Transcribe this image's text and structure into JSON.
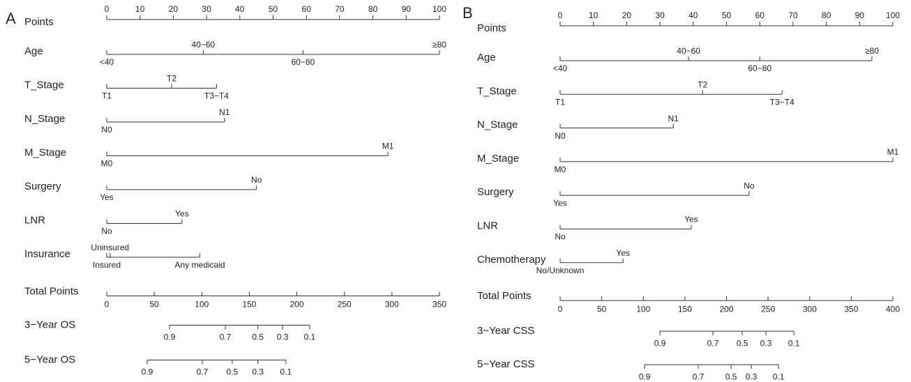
{
  "chart_data": [
    {
      "type": "nomogram",
      "panel": "A",
      "points_label": "Points",
      "xlim": [
        0,
        100
      ],
      "xticks": [
        0,
        10,
        20,
        30,
        40,
        50,
        60,
        70,
        80,
        90,
        100
      ],
      "variables": [
        {
          "name": "Age",
          "levels": [
            "<40",
            "40−60",
            "60−80",
            "≥80"
          ],
          "values": [
            0,
            29,
            59,
            100
          ]
        },
        {
          "name": "T_Stage",
          "levels": [
            "T1",
            "T2",
            "T3−T4"
          ],
          "values": [
            0,
            19.5,
            33
          ]
        },
        {
          "name": "N_Stage",
          "levels": [
            "N0",
            "N1"
          ],
          "values": [
            0,
            35.4
          ]
        },
        {
          "name": "M_Stage",
          "levels": [
            "M0",
            "M1"
          ],
          "values": [
            0,
            84.5
          ]
        },
        {
          "name": "Surgery",
          "levels": [
            "Yes",
            "No"
          ],
          "values": [
            0,
            45
          ]
        },
        {
          "name": "LNR",
          "levels": [
            "No",
            "Yes"
          ],
          "values": [
            0,
            22.6
          ]
        },
        {
          "name": "Insurance",
          "levels": [
            "Insured",
            "Uninsured",
            "Any medicaid"
          ],
          "values": [
            0,
            1,
            28
          ]
        }
      ],
      "total": {
        "name": "Total Points",
        "xlim": [
          0,
          350
        ],
        "xticks": [
          0,
          50,
          100,
          150,
          200,
          250,
          300,
          350
        ]
      },
      "outcomes": [
        {
          "name": "3−Year OS",
          "probabilities": [
            0.9,
            0.7,
            0.5,
            0.3,
            0.1
          ],
          "values": [
            66,
            124.7,
            159,
            185,
            213.5
          ]
        },
        {
          "name": "5−Year OS",
          "probabilities": [
            0.9,
            0.7,
            0.5,
            0.3,
            0.1
          ],
          "values": [
            42.5,
            100.5,
            132,
            159,
            188.5
          ]
        }
      ]
    },
    {
      "type": "nomogram",
      "panel": "B",
      "points_label": "Points",
      "xlim": [
        0,
        100
      ],
      "xticks": [
        0,
        10,
        20,
        30,
        40,
        50,
        60,
        70,
        80,
        90,
        100
      ],
      "variables": [
        {
          "name": "Age",
          "levels": [
            "<40",
            "40−60",
            "60−80",
            "≥80"
          ],
          "values": [
            0,
            38.6,
            60,
            93.7
          ]
        },
        {
          "name": "T_Stage",
          "levels": [
            "T1",
            "T2",
            "T3−T4"
          ],
          "values": [
            0,
            42.8,
            66.7
          ]
        },
        {
          "name": "N_Stage",
          "levels": [
            "N0",
            "N1"
          ],
          "values": [
            0,
            34
          ]
        },
        {
          "name": "M_Stage",
          "levels": [
            "M0",
            "M1"
          ],
          "values": [
            0,
            100
          ]
        },
        {
          "name": "Surgery",
          "levels": [
            "Yes",
            "No"
          ],
          "values": [
            0,
            56.8
          ]
        },
        {
          "name": "LNR",
          "levels": [
            "No",
            "Yes"
          ],
          "values": [
            0,
            39.4
          ]
        },
        {
          "name": "Chemotherapy",
          "levels": [
            "No/Unknown",
            "Yes"
          ],
          "values": [
            0,
            18.9
          ]
        }
      ],
      "total": {
        "name": "Total Points",
        "xlim": [
          0,
          400
        ],
        "xticks": [
          0,
          50,
          100,
          150,
          200,
          250,
          300,
          350,
          400
        ]
      },
      "outcomes": [
        {
          "name": "3−Year CSS",
          "probabilities": [
            0.9,
            0.7,
            0.5,
            0.3,
            0.1
          ],
          "values": [
            120,
            183.6,
            218.9,
            247.4,
            281
          ]
        },
        {
          "name": "5−Year CSS",
          "probabilities": [
            0.9,
            0.7,
            0.5,
            0.3,
            0.1
          ],
          "values": [
            101.5,
            166,
            205.5,
            229.8,
            262.5
          ]
        }
      ]
    }
  ]
}
